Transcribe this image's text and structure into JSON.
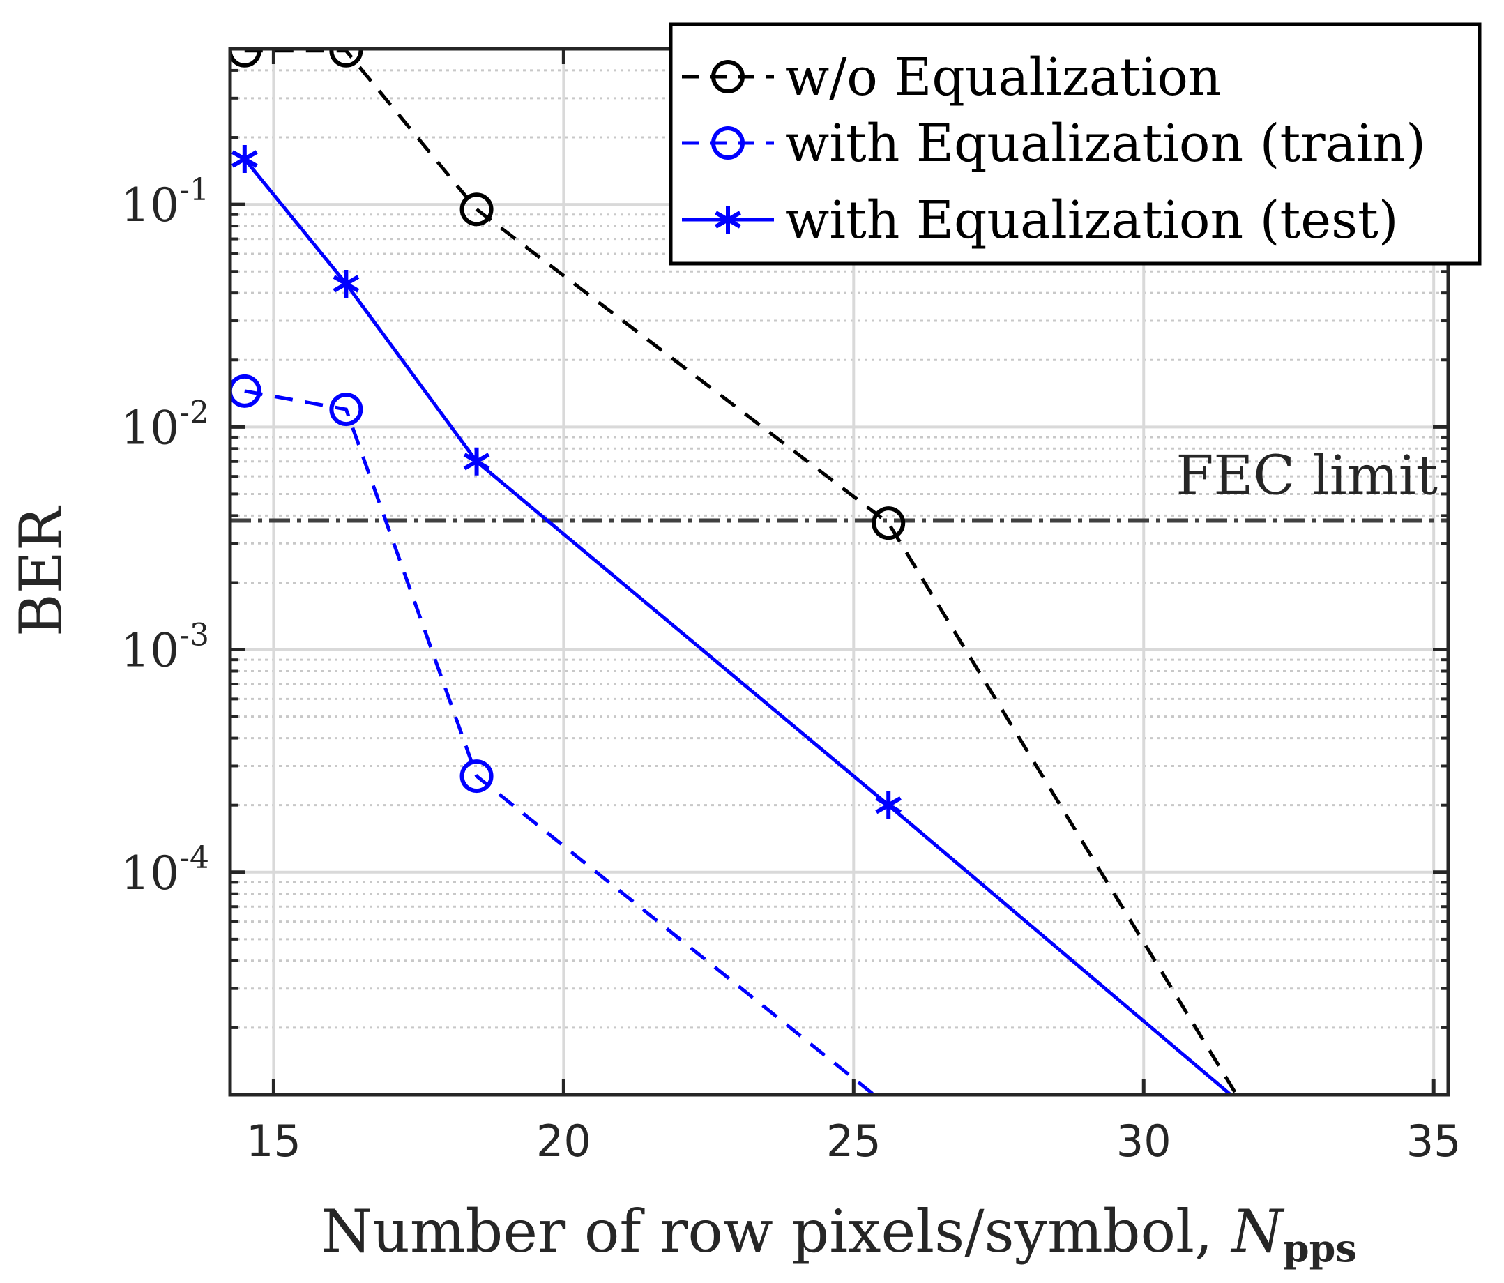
{
  "chart_data": {
    "type": "line",
    "x_scale": "linear",
    "y_scale": "log",
    "xlim": [
      14.25,
      35.25
    ],
    "ylim": [
      1e-05,
      0.5
    ],
    "x_ticks": [
      15,
      20,
      25,
      30,
      35
    ],
    "x_tick_labels": [
      "15",
      "20",
      "25",
      "30",
      "35"
    ],
    "y_ticks": [
      0.1,
      0.01,
      0.001,
      0.0001
    ],
    "y_tick_labels": [
      {
        "base": "10",
        "exp": "-1"
      },
      {
        "base": "10",
        "exp": "-2"
      },
      {
        "base": "10",
        "exp": "-3"
      },
      {
        "base": "10",
        "exp": "-4"
      }
    ],
    "xlabel": "Number of row pixels/symbol, ",
    "xlabel_var": "N",
    "xlabel_sub": "pps",
    "ylabel": "BER",
    "grid": true,
    "minor_grid": true,
    "series": [
      {
        "name": "w/o Equalization",
        "color": "#000000",
        "line_style": "dashed",
        "marker": "circle",
        "x": [
          14.5,
          16.25,
          18.5,
          25.6,
          31.6
        ],
        "y": [
          0.49,
          0.49,
          0.095,
          0.0037,
          1e-05
        ]
      },
      {
        "name": "with Equalization (train)",
        "color": "#0000ff",
        "line_style": "dashed",
        "marker": "circle",
        "x": [
          14.5,
          16.25,
          18.5,
          25.35
        ],
        "y": [
          0.0145,
          0.012,
          0.00027,
          1e-05
        ]
      },
      {
        "name": "with Equalization (test)",
        "color": "#0000ff",
        "line_style": "solid",
        "marker": "asterisk",
        "x": [
          14.5,
          16.25,
          18.5,
          25.6,
          31.5
        ],
        "y": [
          0.16,
          0.044,
          0.007,
          0.0002,
          1e-05
        ]
      }
    ],
    "reference_line": {
      "label": "FEC limit",
      "y": 0.0038,
      "color": "#404040",
      "line_style": "dash-dot"
    },
    "legend_position": "top-right"
  }
}
